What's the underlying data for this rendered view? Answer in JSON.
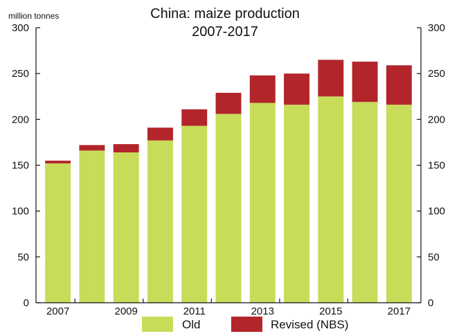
{
  "chart_data": {
    "type": "bar",
    "stacked": true,
    "title": "China: maize production",
    "subtitle": "2007-2017",
    "ylabel": "million tonnes",
    "xlabel": "",
    "ylim": [
      0,
      300
    ],
    "yticks": [
      0,
      50,
      100,
      150,
      200,
      250,
      300
    ],
    "categories": [
      "2007",
      "2008",
      "2009",
      "2010",
      "2011",
      "2012",
      "2013",
      "2014",
      "2015",
      "2016",
      "2017"
    ],
    "xtick_labels": [
      "2007",
      "2009",
      "2011",
      "2013",
      "2015",
      "2017"
    ],
    "series": [
      {
        "name": "Old",
        "color": "#c8dc5a",
        "values": [
          152,
          166,
          164,
          177,
          193,
          206,
          218,
          216,
          225,
          219,
          216
        ]
      },
      {
        "name": "Revised (NBS)",
        "color": "#b2262b",
        "values": [
          3,
          6,
          9,
          14,
          18,
          23,
          30,
          34,
          40,
          44,
          43
        ]
      }
    ],
    "right_axis_mirror": true,
    "grid": false,
    "legend_position": "bottom"
  }
}
